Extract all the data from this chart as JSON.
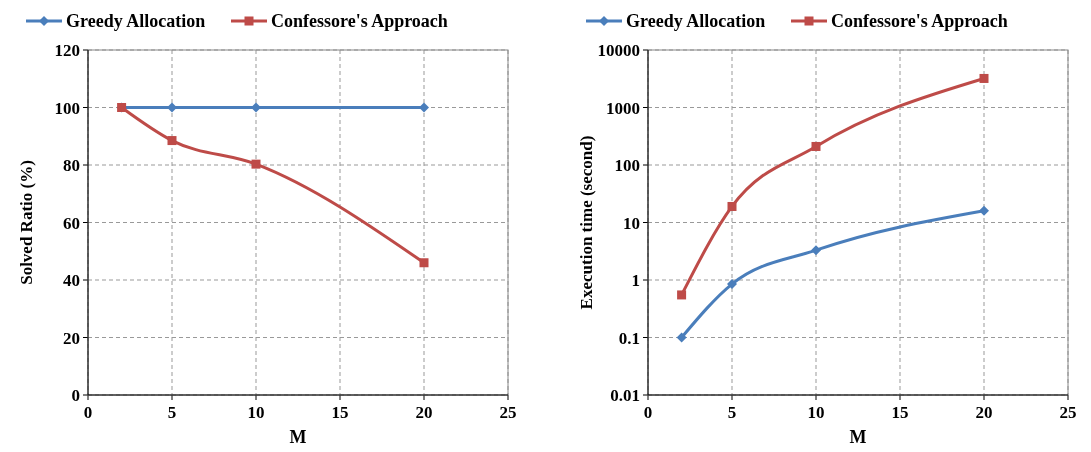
{
  "chart_data": [
    {
      "type": "line",
      "xlabel": "M",
      "ylabel": "Solved Ratio (%)",
      "x": [
        2,
        5,
        10,
        20
      ],
      "xlim": [
        0,
        25
      ],
      "xticks": [
        0,
        5,
        10,
        15,
        20,
        25
      ],
      "ylim": [
        0,
        120
      ],
      "yticks": [
        0,
        20,
        40,
        60,
        80,
        100,
        120
      ],
      "grid": true,
      "legend": "top",
      "series": [
        {
          "name": "Greedy Allocation",
          "color": "#4a7ebb",
          "marker": "diamond",
          "values": [
            100,
            100,
            100,
            100
          ]
        },
        {
          "name": "Confessore's Approach",
          "color": "#be4b48",
          "marker": "square",
          "values": [
            100,
            88.5,
            80.3,
            46
          ]
        }
      ]
    },
    {
      "type": "line",
      "xlabel": "M",
      "ylabel": "Execution time (second)",
      "x": [
        2,
        5,
        10,
        20
      ],
      "xlim": [
        0,
        25
      ],
      "xticks": [
        0,
        5,
        10,
        15,
        20,
        25
      ],
      "log": true,
      "ylim": [
        0.01,
        10000
      ],
      "yticks": [
        0.01,
        0.1,
        1,
        10,
        100,
        1000,
        10000
      ],
      "grid": true,
      "legend": "top",
      "series": [
        {
          "name": "Greedy Allocation",
          "color": "#4a7ebb",
          "marker": "diamond",
          "values": [
            0.1,
            0.85,
            3.3,
            16
          ]
        },
        {
          "name": "Confessore's Approach",
          "color": "#be4b48",
          "marker": "square",
          "values": [
            0.55,
            19,
            210,
            3200
          ]
        }
      ]
    }
  ]
}
